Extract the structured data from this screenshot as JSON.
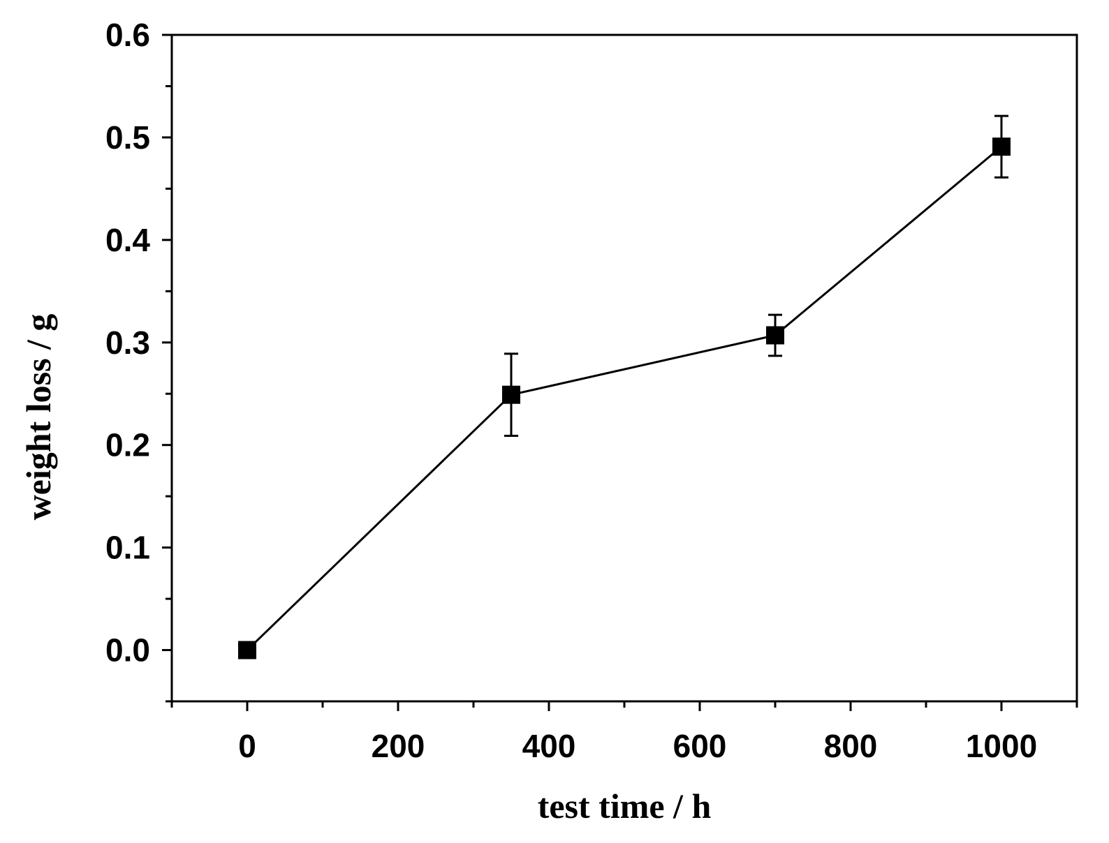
{
  "chart_data": {
    "type": "line",
    "title": "",
    "xlabel": "test time / h",
    "ylabel": "weight loss / g",
    "xlim": [
      -100,
      1100
    ],
    "ylim": [
      -0.05,
      0.6
    ],
    "x_ticks": [
      "0",
      "200",
      "400",
      "600",
      "800",
      "1000"
    ],
    "y_ticks": [
      "0.0",
      "0.1",
      "0.2",
      "0.3",
      "0.4",
      "0.5",
      "0.6"
    ],
    "grid": false,
    "series": [
      {
        "marker": "square",
        "color": "#000000",
        "points": [
          {
            "x": 0,
            "y": 0.0,
            "err": 0.0
          },
          {
            "x": 350,
            "y": 0.249,
            "err": 0.04
          },
          {
            "x": 700,
            "y": 0.307,
            "err": 0.02
          },
          {
            "x": 1000,
            "y": 0.491,
            "err": 0.03
          }
        ]
      }
    ]
  }
}
